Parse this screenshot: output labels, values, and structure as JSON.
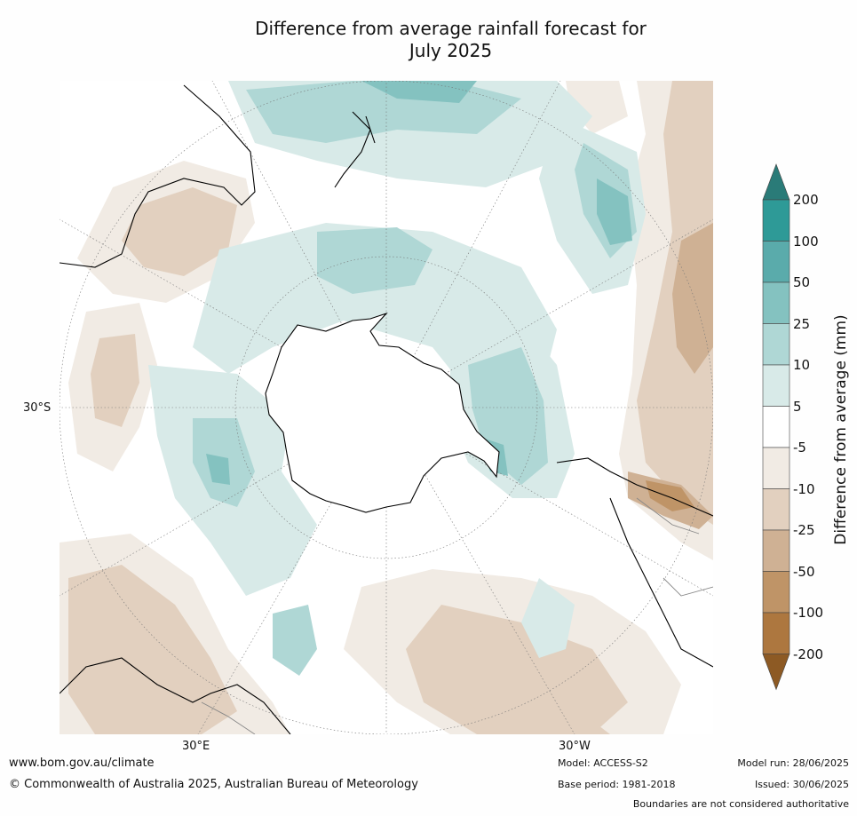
{
  "title_line1": "Difference from average rainfall forecast for",
  "title_line2": "July 2025",
  "map": {
    "projection": "south-polar stereographic",
    "center": "South Pole",
    "labels": {
      "lat_left": "30°S",
      "lon_bottom_left": "30°E",
      "lon_bottom_right": "30°W"
    },
    "colors": {
      "ocean_background": "#ffffff",
      "coast": "#000000",
      "boundaries": "#888888",
      "graticule": "#777777"
    }
  },
  "colorbar": {
    "title": "Difference from average (mm)",
    "ticks": [
      "200",
      "100",
      "50",
      "25",
      "10",
      "5",
      "-5",
      "-10",
      "-25",
      "-50",
      "-100",
      "-200"
    ],
    "bands": [
      {
        "range": "> 200",
        "color": "#2a7b78"
      },
      {
        "range": "100 to 200",
        "color": "#2e9a97"
      },
      {
        "range": "50 to 100",
        "color": "#5aabab"
      },
      {
        "range": "25 to 50",
        "color": "#84c2c0"
      },
      {
        "range": "10 to 25",
        "color": "#afd7d5"
      },
      {
        "range": "5 to 10",
        "color": "#d8eae8"
      },
      {
        "range": "-5 to 5",
        "color": "#ffffff"
      },
      {
        "range": "-10 to -5",
        "color": "#f1ebe4"
      },
      {
        "range": "-25 to -10",
        "color": "#e2d0bf"
      },
      {
        "range": "-50 to -25",
        "color": "#cfb194"
      },
      {
        "range": "-100 to -50",
        "color": "#bf9467"
      },
      {
        "range": "-200 to -100",
        "color": "#ad773f"
      },
      {
        "range": "< -200",
        "color": "#8d5a24"
      }
    ]
  },
  "footer": {
    "website": "www.bom.gov.au/climate",
    "copyright": "© Commonwealth of Australia 2025, Australian Bureau of Meteorology",
    "model": "Model: ACCESS-S2",
    "base_period": "Base period: 1981-2018",
    "model_run": "Model run: 28/06/2025",
    "issued": "Issued: 30/06/2025",
    "disclaimer": "Boundaries are not considered authoritative"
  }
}
